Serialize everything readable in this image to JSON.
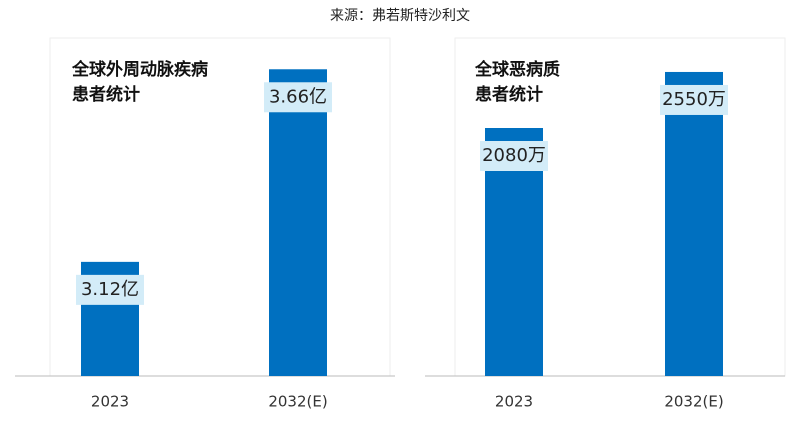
{
  "source": "来源：弗若斯特沙利文",
  "chart_data": [
    {
      "type": "bar",
      "title": "全球外周动脉疾病\n患者统计",
      "categories": [
        "2023",
        "2032(E)"
      ],
      "values": [
        3.12,
        3.66
      ],
      "value_labels": [
        "3.12亿",
        "3.66亿"
      ],
      "color": "#0070c0",
      "ylim": [
        2.8,
        3.7
      ]
    },
    {
      "type": "bar",
      "title": "全球恶病质\n患者统计",
      "categories": [
        "2023",
        "2032(E)"
      ],
      "values": [
        2080,
        2550
      ],
      "value_labels": [
        "2080万",
        "2550万"
      ],
      "color": "#0070c0",
      "ylim": [
        0,
        2600
      ]
    }
  ]
}
